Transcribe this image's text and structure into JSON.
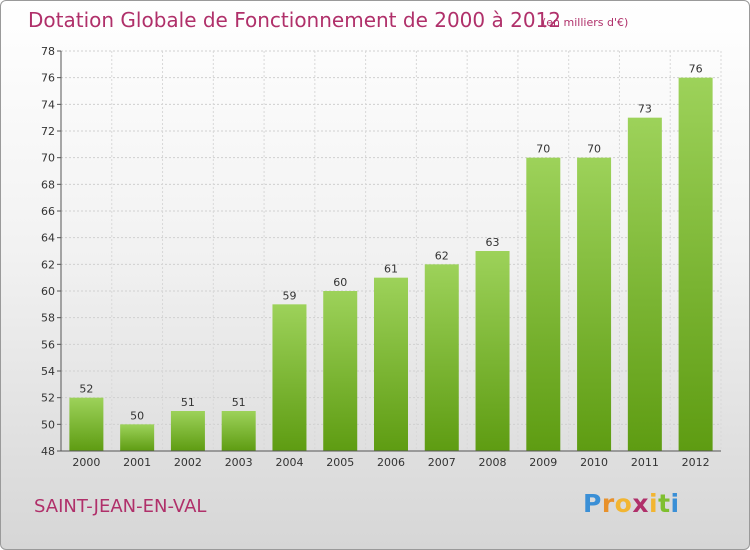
{
  "title": "Dotation Globale de Fonctionnement de 2000 à 2012",
  "unit": "(en milliers d'€)",
  "commune": "SAINT-JEAN-EN-VAL",
  "logo": {
    "text": "Proxiti",
    "letters": [
      "P",
      "r",
      "o",
      "x",
      "i",
      "t",
      "i"
    ]
  },
  "colors": {
    "bar_top": "#9dd25a",
    "bar_bottom": "#5e9c12",
    "title": "#b0306a"
  },
  "chart_data": {
    "type": "bar",
    "categories": [
      "2000",
      "2001",
      "2002",
      "2003",
      "2004",
      "2005",
      "2006",
      "2007",
      "2008",
      "2009",
      "2010",
      "2011",
      "2012"
    ],
    "values": [
      52,
      50,
      51,
      51,
      59,
      60,
      61,
      62,
      63,
      70,
      70,
      73,
      76
    ],
    "ylim": [
      48,
      78
    ],
    "yticks": [
      48,
      50,
      52,
      54,
      56,
      58,
      60,
      62,
      64,
      66,
      68,
      70,
      72,
      74,
      76,
      78
    ],
    "grid": true,
    "title": "Dotation Globale de Fonctionnement de 2000 à 2012",
    "xlabel": "",
    "ylabel": ""
  }
}
